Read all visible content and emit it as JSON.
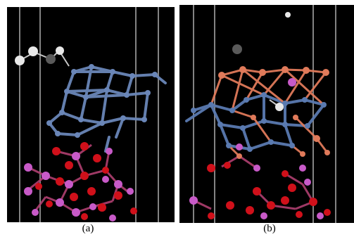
{
  "panels": [
    {
      "caption": "(a)",
      "atoms": [
        "hydrogen",
        "carbon",
        "metal-cluster",
        "silicon",
        "oxygen"
      ],
      "colors": {
        "background": "#000000",
        "hydrogen": "#e8e8e8",
        "carbon": "#5a5a5a",
        "metal-cluster": "#6a86b8",
        "silicon": "#c85ac8",
        "oxygen": "#d0101a",
        "cell-lines": "#9a9a9a"
      }
    },
    {
      "caption": "(b)",
      "atoms": [
        "hydrogen",
        "carbon",
        "metal-cluster",
        "copper",
        "silicon",
        "oxygen"
      ],
      "colors": {
        "background": "#000000",
        "hydrogen": "#e8e8e8",
        "carbon": "#5a5a5a",
        "metal-cluster": "#5a7ab0",
        "copper": "#e07a5a",
        "silicon": "#c85ac8",
        "oxygen": "#d0101a",
        "cell-lines": "#9a9a9a"
      }
    }
  ]
}
